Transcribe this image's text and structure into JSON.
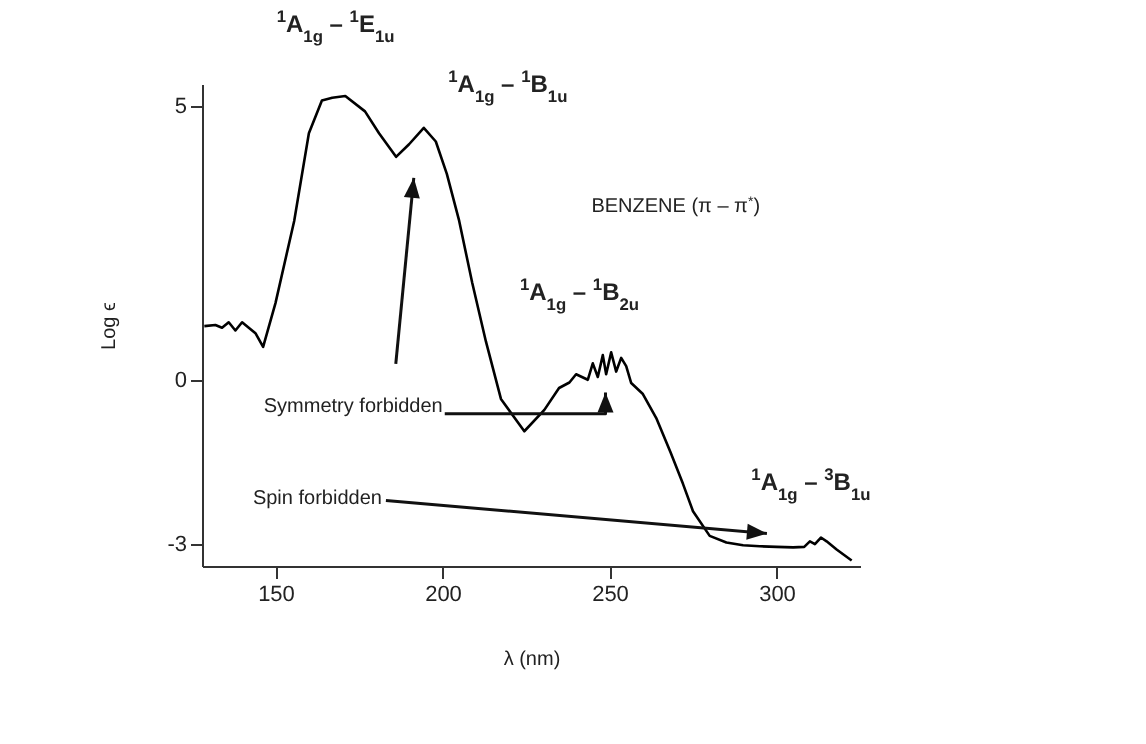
{
  "chart_data": {
    "type": "line",
    "title": "BENZENE (π – π$^{*}$)",
    "xlabel": "λ (nm)",
    "ylabel": "Log ϵ",
    "x": [
      128.7,
      132,
      134,
      136,
      138,
      140,
      142,
      144,
      146.3,
      150,
      155.6,
      160,
      163.9,
      167,
      170.9,
      176.8,
      181,
      186.1,
      190,
      194.4,
      198,
      201.3,
      205,
      208.9,
      213,
      217.5,
      224.5,
      230.5,
      234.9,
      238,
      240,
      243.5,
      245,
      246.5,
      248,
      249,
      250.5,
      252,
      253.5,
      255,
      256.5,
      260,
      264,
      268.3,
      272,
      275,
      280,
      285,
      290,
      295,
      300,
      305,
      308.3,
      310,
      311.5,
      313.3,
      315,
      318,
      322.5
    ],
    "series": [
      {
        "color": "#000000",
        "values": [
          0.98,
          1.0,
          0.95,
          1.05,
          0.9,
          1.05,
          0.95,
          0.85,
          0.6,
          1.4,
          2.9,
          4.5,
          5.1,
          5.15,
          5.18,
          4.9,
          4.5,
          4.07,
          4.3,
          4.6,
          4.35,
          3.76,
          2.9,
          1.77,
          0.7,
          -0.35,
          -0.94,
          -0.55,
          -0.15,
          -0.05,
          0.1,
          0.0,
          0.3,
          0.05,
          0.45,
          0.1,
          0.5,
          0.15,
          0.4,
          0.25,
          -0.06,
          -0.26,
          -0.7,
          -1.33,
          -1.9,
          -2.4,
          -2.85,
          -2.97,
          -3.02,
          -3.04,
          -3.05,
          -3.06,
          -3.05,
          -2.95,
          -3.0,
          -2.88,
          -2.95,
          -3.1,
          -3.3
        ]
      }
    ],
    "xlim": [
      128,
      325
    ],
    "xticks": [
      150,
      200,
      250,
      300
    ],
    "ylim": [
      -3.4,
      5.4
    ],
    "yticks": [
      5,
      0,
      -3
    ],
    "grid": false,
    "annotations": [
      {
        "text": "$^{1}$A$_{1g}$ – $^{1}$E$_{1u}$",
        "x": 168,
        "y": 5.18
      },
      {
        "text": "$^{1}$A$_{1g}$ – $^{1}$B$_{1u}$",
        "x": 194.4,
        "y": 4.6
      },
      {
        "text": "$^{1}$A$_{1g}$ – $^{1}$B$_{2u}$",
        "x": 250,
        "y": 0.5
      },
      {
        "text": "$^{1}$A$_{1g}$ – $^{3}$B$_{1u}$",
        "x": 313.3,
        "y": -2.88
      },
      "Symmetry forbidden",
      "Spin forbidden"
    ]
  }
}
